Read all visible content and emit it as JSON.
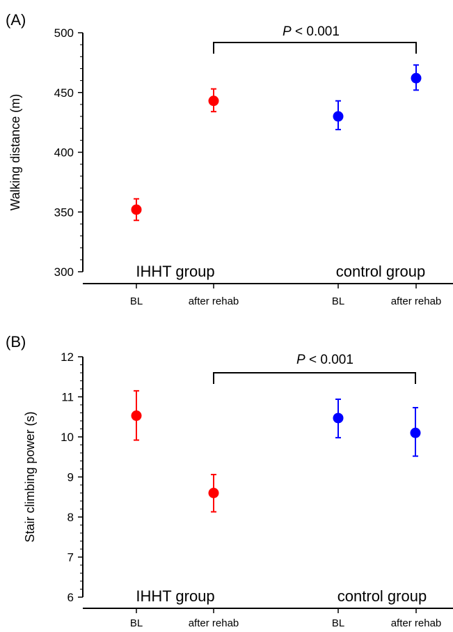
{
  "chart_data": [
    {
      "panel_label": "(A)",
      "type": "scatter",
      "ylabel": "Walking distance (m)",
      "ylim": [
        300,
        500
      ],
      "yticks": [
        "300",
        "350",
        "400",
        "450",
        "500"
      ],
      "categories": [
        "BL",
        "after rehab",
        "BL",
        "after rehab"
      ],
      "group_labels": [
        "IHHT group",
        "control group"
      ],
      "significance": {
        "label_italic": "P",
        "label_rest": " < 0.001"
      },
      "series": [
        {
          "name": "IHHT group",
          "color": "#ff0000",
          "points": [
            {
              "category": "BL",
              "value": 352,
              "err_low": 343,
              "err_high": 361
            },
            {
              "category": "after rehab",
              "value": 443,
              "err_low": 434,
              "err_high": 453
            }
          ]
        },
        {
          "name": "control group",
          "color": "#0000ff",
          "points": [
            {
              "category": "BL",
              "value": 430,
              "err_low": 419,
              "err_high": 443
            },
            {
              "category": "after rehab",
              "value": 462,
              "err_low": 452,
              "err_high": 473
            }
          ]
        }
      ]
    },
    {
      "panel_label": "(B)",
      "type": "scatter",
      "ylabel": "Stair climbing power (s)",
      "ylim": [
        6,
        12
      ],
      "yticks": [
        "6",
        "7",
        "8",
        "9",
        "10",
        "11",
        "12"
      ],
      "categories": [
        "BL",
        "after rehab",
        "BL",
        "after rehab"
      ],
      "group_labels": [
        "IHHT group",
        "control group"
      ],
      "significance": {
        "label_italic": "P",
        "label_rest": " < 0.001"
      },
      "series": [
        {
          "name": "IHHT group",
          "color": "#ff0000",
          "points": [
            {
              "category": "BL",
              "value": 10.53,
              "err_low": 9.92,
              "err_high": 11.15
            },
            {
              "category": "after rehab",
              "value": 8.6,
              "err_low": 8.13,
              "err_high": 9.06
            }
          ]
        },
        {
          "name": "control group",
          "color": "#0000ff",
          "points": [
            {
              "category": "BL",
              "value": 10.47,
              "err_low": 9.98,
              "err_high": 10.94
            },
            {
              "category": "after rehab",
              "value": 10.1,
              "err_low": 9.52,
              "err_high": 10.73
            }
          ]
        }
      ]
    }
  ]
}
